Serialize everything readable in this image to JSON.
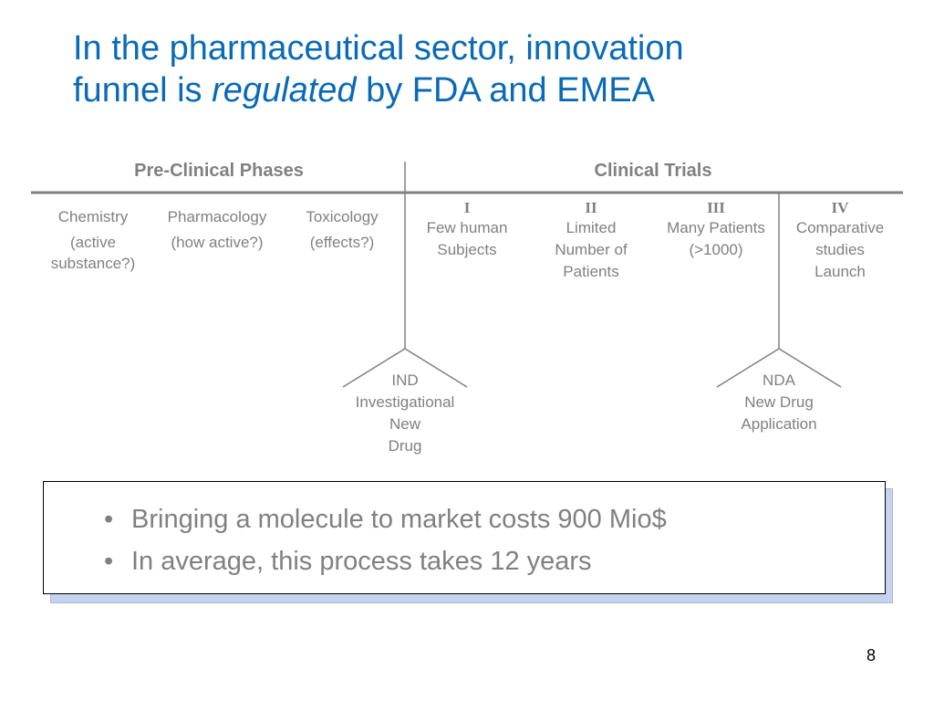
{
  "title": {
    "line1": "In the pharmaceutical sector,  innovation",
    "line2_pre": "funnel is ",
    "line2_em": "regulated",
    "line2_post": " by FDA and EMEA"
  },
  "headers": {
    "preclinical": "Pre-Clinical Phases",
    "clinical": "Clinical Trials"
  },
  "preclinical": [
    {
      "name": "Chemistry",
      "sub1": "(active",
      "sub2": "substance?)"
    },
    {
      "name": "Pharmacology",
      "sub1": "(how active?)",
      "sub2": ""
    },
    {
      "name": "Toxicology",
      "sub1": "(effects?)",
      "sub2": ""
    }
  ],
  "clinical": [
    {
      "roman": "I",
      "lines": [
        "Few human",
        "Subjects",
        ""
      ]
    },
    {
      "roman": "II",
      "lines": [
        "Limited",
        "Number of",
        "Patients"
      ]
    },
    {
      "roman": "III",
      "lines": [
        "Many Patients",
        "(>1000)",
        ""
      ]
    },
    {
      "roman": "IV",
      "lines": [
        "Comparative",
        "studies",
        "Launch"
      ]
    }
  ],
  "gates": {
    "ind": [
      "IND",
      "Investigational",
      "New",
      "Drug"
    ],
    "nda": [
      "NDA",
      "New Drug",
      "Application"
    ]
  },
  "bullets": [
    "Bringing a molecule to market costs  900 Mio$",
    "In average, this process takes 12 years"
  ],
  "bullet_symbol": "•",
  "page_number": "8",
  "colors": {
    "title": "#0a6ab5",
    "text": "#808080",
    "box_shadow": "#c6d3ef"
  }
}
